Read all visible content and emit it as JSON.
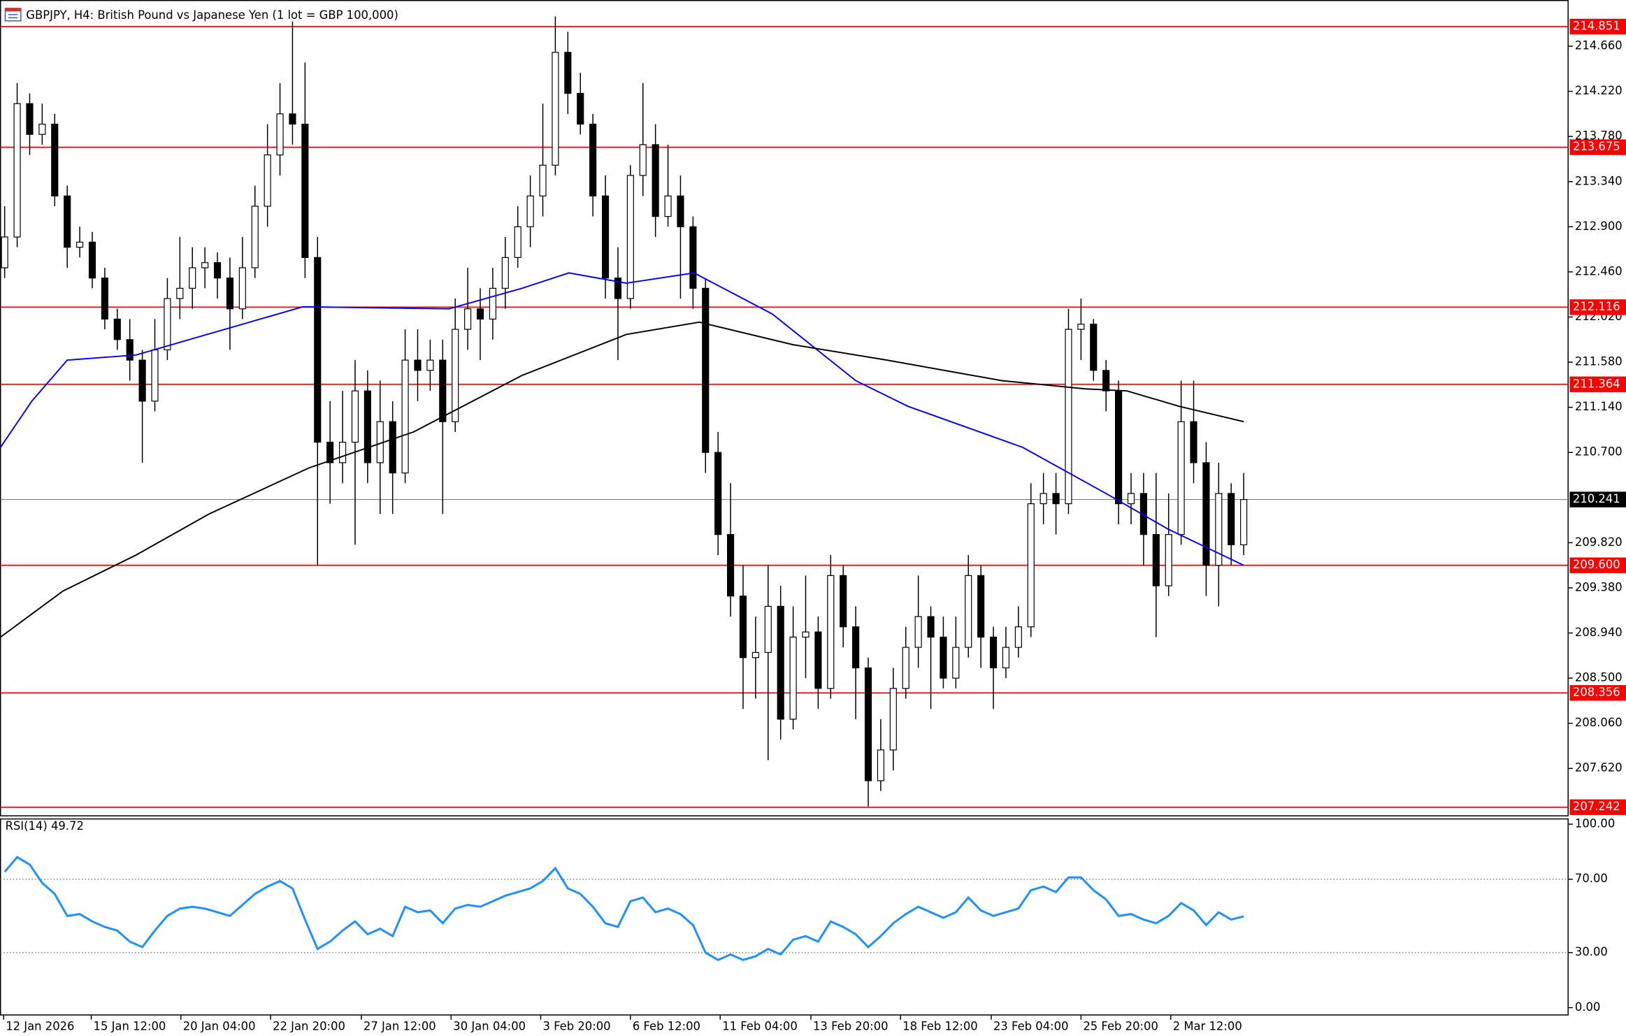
{
  "chart_data": [
    {
      "type": "candlestick",
      "title": "GBPJPY, H4:  British Pound vs Japanese Yen (1 lot = GBP 100,000)",
      "open": [
        212.5,
        212.8,
        214.1,
        213.8,
        213.9,
        213.2,
        212.7,
        212.75,
        212.4,
        212.0,
        211.8,
        211.6,
        211.2,
        211.7,
        212.2,
        212.3,
        212.5,
        212.55,
        212.4,
        212.1,
        212.5,
        213.1,
        213.6,
        214.0,
        213.9,
        212.6,
        210.8,
        210.6,
        210.8,
        211.3,
        210.6,
        211.0,
        210.5,
        211.6,
        211.5,
        211.6,
        211.0,
        211.9,
        212.1,
        212.0,
        212.3,
        212.6,
        212.9,
        213.2,
        213.5,
        214.6,
        214.2,
        213.9,
        213.2,
        212.4,
        212.2,
        213.4,
        213.7,
        213.0,
        213.2,
        212.9,
        212.3,
        210.7,
        209.9,
        209.3,
        208.7,
        208.75,
        209.2,
        208.1,
        208.9,
        208.95,
        208.4,
        209.5,
        209.0,
        208.6,
        207.5,
        207.8,
        208.4,
        208.8,
        209.1,
        208.9,
        208.5,
        208.8,
        209.5,
        208.9,
        208.6,
        208.8,
        209.0,
        210.2,
        210.3,
        210.2,
        211.9,
        211.95,
        211.5,
        211.3,
        210.2,
        210.3,
        209.9,
        209.4,
        209.9,
        211.0,
        210.6,
        209.6,
        210.3,
        209.8
      ],
      "high": [
        213.1,
        214.3,
        214.2,
        214.1,
        214.0,
        213.3,
        212.9,
        212.85,
        212.5,
        212.1,
        212.0,
        211.7,
        212.0,
        212.4,
        212.8,
        212.7,
        212.7,
        212.65,
        212.6,
        212.8,
        213.3,
        213.9,
        214.3,
        214.9,
        214.5,
        212.8,
        211.2,
        211.3,
        211.6,
        211.5,
        211.4,
        211.2,
        211.9,
        211.9,
        211.8,
        211.8,
        212.2,
        212.5,
        212.3,
        212.5,
        212.8,
        213.1,
        213.4,
        214.1,
        214.95,
        214.8,
        214.4,
        214.0,
        213.4,
        212.7,
        213.5,
        214.3,
        213.9,
        213.7,
        213.4,
        213.0,
        212.4,
        210.9,
        210.4,
        209.6,
        209.1,
        209.6,
        209.4,
        209.2,
        209.5,
        209.1,
        209.7,
        209.6,
        209.2,
        208.7,
        208.1,
        208.6,
        209.0,
        209.5,
        209.2,
        209.1,
        209.1,
        209.7,
        209.6,
        209.0,
        209.0,
        209.2,
        210.4,
        210.5,
        210.5,
        212.1,
        212.2,
        212.0,
        211.6,
        211.4,
        210.5,
        210.5,
        210.5,
        210.3,
        211.4,
        211.4,
        210.8,
        210.6,
        210.4,
        210.5
      ],
      "low": [
        212.4,
        212.7,
        213.6,
        213.7,
        213.1,
        212.5,
        212.6,
        212.3,
        211.9,
        211.7,
        211.4,
        210.6,
        211.1,
        211.6,
        212.0,
        212.1,
        212.3,
        212.2,
        211.7,
        212.0,
        212.4,
        212.9,
        213.4,
        213.7,
        212.4,
        209.6,
        210.2,
        210.4,
        209.8,
        210.4,
        210.1,
        210.1,
        210.4,
        211.2,
        211.3,
        210.1,
        210.9,
        211.7,
        211.6,
        211.8,
        212.1,
        212.5,
        212.7,
        213.0,
        213.4,
        214.0,
        213.8,
        213.0,
        212.2,
        211.6,
        212.1,
        213.2,
        212.8,
        212.9,
        212.2,
        212.1,
        210.5,
        209.7,
        209.1,
        208.2,
        208.3,
        207.7,
        207.9,
        208.0,
        208.5,
        208.2,
        208.3,
        208.8,
        208.1,
        207.25,
        207.4,
        207.6,
        208.3,
        208.6,
        208.2,
        208.4,
        208.4,
        208.7,
        208.6,
        208.2,
        208.5,
        208.7,
        208.9,
        210.0,
        209.9,
        210.1,
        211.6,
        211.4,
        211.1,
        210.0,
        210.0,
        209.6,
        208.9,
        209.3,
        209.8,
        210.4,
        209.3,
        209.2,
        209.6,
        209.7
      ],
      "close": [
        212.8,
        214.1,
        213.8,
        213.9,
        213.2,
        212.7,
        212.75,
        212.4,
        212.0,
        211.8,
        211.6,
        211.2,
        211.7,
        212.2,
        212.3,
        212.5,
        212.55,
        212.4,
        212.1,
        212.5,
        213.1,
        213.6,
        214.0,
        213.9,
        212.6,
        210.8,
        210.6,
        210.8,
        211.3,
        210.6,
        211.0,
        210.5,
        211.6,
        211.5,
        211.6,
        211.0,
        211.9,
        212.1,
        212.0,
        212.3,
        212.6,
        212.9,
        213.2,
        213.5,
        214.6,
        214.2,
        213.9,
        213.2,
        212.4,
        212.2,
        213.4,
        213.7,
        213.0,
        213.2,
        212.9,
        212.3,
        210.7,
        209.9,
        209.3,
        208.7,
        208.75,
        209.2,
        208.1,
        208.9,
        208.95,
        208.4,
        209.5,
        209.0,
        208.6,
        207.5,
        207.8,
        208.4,
        208.8,
        209.1,
        208.9,
        208.5,
        208.8,
        209.5,
        208.9,
        208.6,
        208.8,
        209.0,
        210.2,
        210.3,
        210.2,
        211.9,
        211.95,
        211.5,
        211.3,
        210.2,
        210.3,
        209.9,
        209.4,
        209.9,
        211.0,
        210.6,
        209.6,
        210.3,
        209.8,
        210.241
      ],
      "xlim": [
        -0.33,
        124.92
      ],
      "ylim": [
        207.158,
        215.105
      ],
      "xticks": [
        {
          "value": -0.08,
          "label": "12 Jan 2026"
        },
        {
          "value": 6.92,
          "label": "15 Jan 12:00"
        },
        {
          "value": 14.08,
          "label": "20 Jan 04:00"
        },
        {
          "value": 21.25,
          "label": "22 Jan 20:00"
        },
        {
          "value": 28.5,
          "label": "27 Jan 12:00"
        },
        {
          "value": 35.67,
          "label": "30 Jan 04:00"
        },
        {
          "value": 42.83,
          "label": "3 Feb 20:00"
        },
        {
          "value": 50,
          "label": "6 Feb 12:00"
        },
        {
          "value": 57.17,
          "label": "11 Feb 04:00"
        },
        {
          "value": 64.42,
          "label": "13 Feb 20:00"
        },
        {
          "value": 71.58,
          "label": "18 Feb 12:00"
        },
        {
          "value": 78.83,
          "label": "23 Feb 04:00"
        },
        {
          "value": 86,
          "label": "25 Feb 20:00"
        },
        {
          "value": 93.17,
          "label": "2 Mar 12:00"
        }
      ],
      "yticks": [
        {
          "value": 214.66,
          "label": "214.660"
        },
        {
          "value": 214.22,
          "label": "214.220"
        },
        {
          "value": 213.78,
          "label": "213.780"
        },
        {
          "value": 213.34,
          "label": "213.340"
        },
        {
          "value": 212.9,
          "label": "212.900"
        },
        {
          "value": 212.46,
          "label": "212.460"
        },
        {
          "value": 212.02,
          "label": "212.020"
        },
        {
          "value": 211.58,
          "label": "211.580"
        },
        {
          "value": 211.14,
          "label": "211.140"
        },
        {
          "value": 210.7,
          "label": "210.700"
        },
        {
          "value": 209.82,
          "label": "209.820"
        },
        {
          "value": 209.38,
          "label": "209.380"
        },
        {
          "value": 208.94,
          "label": "208.940"
        },
        {
          "value": 208.5,
          "label": "208.500"
        },
        {
          "value": 208.06,
          "label": "208.060"
        },
        {
          "value": 207.62,
          "label": "207.620"
        }
      ],
      "levels": {
        "color": "#ff0000",
        "values": [
          {
            "value": 214.851,
            "label": "214.851"
          },
          {
            "value": 213.675,
            "label": "213.675"
          },
          {
            "value": 212.116,
            "label": "212.116"
          },
          {
            "value": 211.364,
            "label": "211.364"
          },
          {
            "value": 209.6,
            "label": "209.600"
          },
          {
            "value": 208.356,
            "label": "208.356"
          },
          {
            "value": 207.242,
            "label": "207.242"
          }
        ]
      },
      "price_line": {
        "value": 210.241,
        "label": "210.241"
      },
      "series": [
        {
          "color": "#0000ff",
          "x": [
            -0.33,
            2.17,
            5,
            10.5,
            23.83,
            35.5,
            41.33,
            45.08,
            49.67,
            55.08,
            61.33,
            68,
            72.17,
            81.33,
            88,
            93,
            99
          ],
          "values": [
            210.75,
            211.2,
            211.6,
            211.65,
            212.12,
            212.1,
            212.3,
            212.45,
            212.35,
            212.45,
            212.05,
            211.4,
            211.15,
            210.75,
            210.3,
            209.95,
            209.6
          ]
        },
        {
          "color": "#000000",
          "x": [
            -0.33,
            4.67,
            10.5,
            16.33,
            24.33,
            32.67,
            41.33,
            49.67,
            55.5,
            63,
            70.5,
            79.67,
            86.33,
            89.67,
            93.83,
            99
          ],
          "values": [
            208.9,
            209.35,
            209.7,
            210.1,
            210.55,
            210.9,
            211.45,
            211.85,
            211.97,
            211.75,
            211.6,
            211.4,
            211.32,
            211.3,
            211.15,
            211.0
          ]
        }
      ]
    },
    {
      "type": "line",
      "title": "RSI(14) 49.72",
      "color": "#1e90ff",
      "values": [
        74,
        82,
        78,
        68,
        62,
        50,
        51,
        47,
        44,
        42,
        36,
        33,
        42,
        50,
        54,
        55,
        54,
        52,
        50,
        56,
        62,
        66,
        69,
        65,
        48,
        32,
        36,
        42,
        47,
        40,
        43,
        39,
        55,
        52,
        53,
        46,
        54,
        56,
        55,
        58,
        61,
        63,
        65,
        69,
        76,
        65,
        62,
        55,
        46,
        44,
        58,
        60,
        52,
        54,
        51,
        45,
        30,
        26,
        29,
        26,
        28,
        32,
        29,
        37,
        39,
        36,
        47,
        44,
        40,
        33,
        39,
        46,
        51,
        55,
        52,
        49,
        52,
        60,
        53,
        50,
        52,
        54,
        64,
        66,
        63,
        71,
        71,
        64,
        59,
        50,
        51,
        48,
        46,
        50,
        57,
        53,
        45,
        52,
        48,
        49.72
      ],
      "ylim": [
        -3.98,
        102.84
      ],
      "yticks": [
        {
          "value": 100,
          "label": "100.00"
        },
        {
          "value": 70,
          "label": "70.00"
        },
        {
          "value": 30,
          "label": "30.00"
        },
        {
          "value": 0,
          "label": "0.00"
        }
      ],
      "levels": [
        70,
        30
      ]
    }
  ]
}
